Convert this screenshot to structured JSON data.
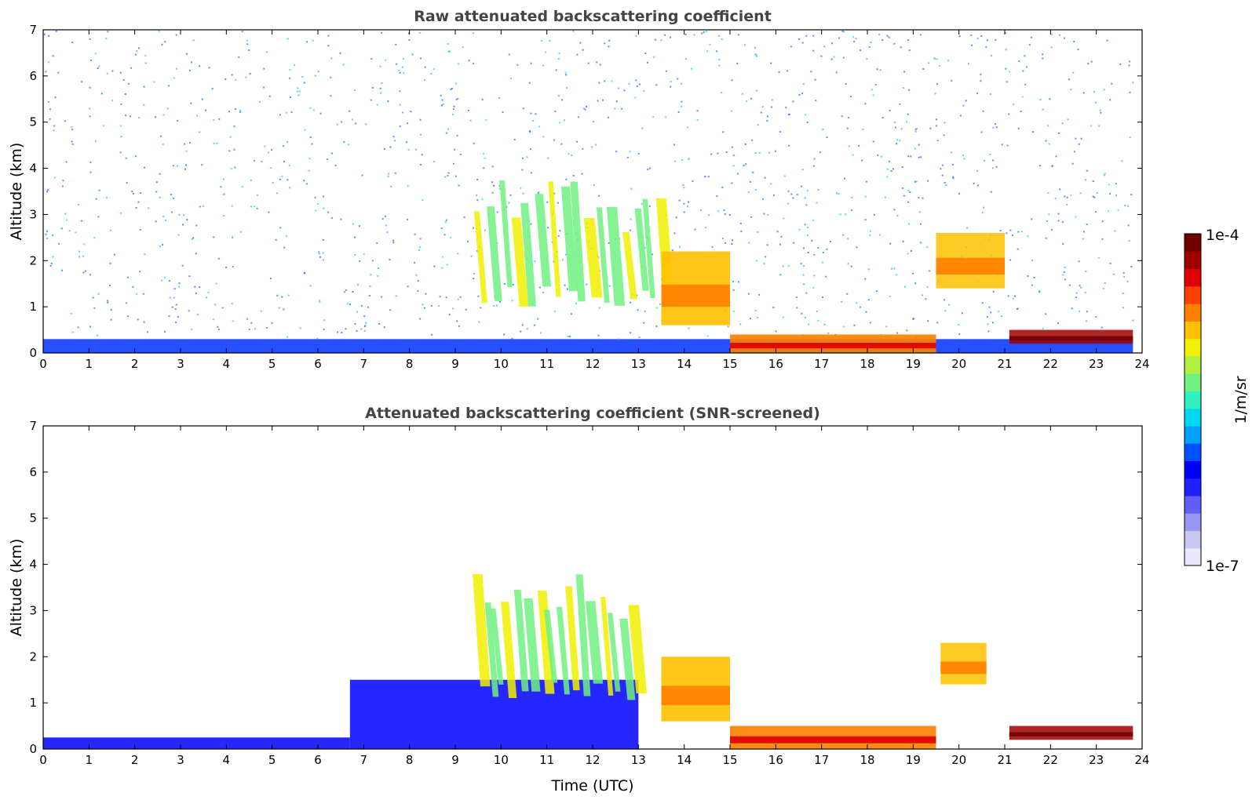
{
  "chart_data": [
    {
      "type": "heatmap",
      "title": "Raw attenuated backscattering coefficient",
      "xlabel": "",
      "ylabel": "Altitude (km)",
      "xlim": [
        0,
        24
      ],
      "ylim": [
        0,
        7
      ],
      "xticks": [
        "0",
        "1",
        "2",
        "3",
        "4",
        "5",
        "6",
        "7",
        "8",
        "9",
        "10",
        "11",
        "12",
        "13",
        "14",
        "15",
        "16",
        "17",
        "18",
        "19",
        "20",
        "21",
        "22",
        "23",
        "24"
      ],
      "yticks": [
        "0",
        "1",
        "2",
        "3",
        "4",
        "5",
        "6",
        "7"
      ],
      "features": [
        {
          "kind": "dense_near_surface_layer",
          "time": [
            0,
            23.8
          ],
          "altitude": [
            0,
            0.3
          ],
          "level": "low-mid"
        },
        {
          "kind": "noise_field",
          "time": [
            0,
            23.8
          ],
          "altitude": [
            0.3,
            7
          ],
          "level": "low"
        },
        {
          "kind": "virga_streaks",
          "time": [
            9.3,
            13.6
          ],
          "altitude": [
            1.0,
            3.8
          ],
          "level": "mid-high"
        },
        {
          "kind": "descending_cloud",
          "time": [
            13.5,
            15.0
          ],
          "altitude": [
            0.6,
            2.2
          ],
          "level": "high"
        },
        {
          "kind": "boundary_layer",
          "time": [
            15.0,
            19.5
          ],
          "altitude": [
            0,
            0.4
          ],
          "level": "very-high"
        },
        {
          "kind": "cloud_band",
          "time": [
            19.5,
            21.0
          ],
          "altitude": [
            1.4,
            2.6
          ],
          "level": "high"
        },
        {
          "kind": "low_cloud",
          "time": [
            21.1,
            23.8
          ],
          "altitude": [
            0.2,
            0.5
          ],
          "level": "max"
        }
      ]
    },
    {
      "type": "heatmap",
      "title": "Attenuated backscattering coefficient (SNR-screened)",
      "xlabel": "Time (UTC)",
      "ylabel": "Altitude (km)",
      "xlim": [
        0,
        24
      ],
      "ylim": [
        0,
        7
      ],
      "xticks": [
        "0",
        "1",
        "2",
        "3",
        "4",
        "5",
        "6",
        "7",
        "8",
        "9",
        "10",
        "11",
        "12",
        "13",
        "14",
        "15",
        "16",
        "17",
        "18",
        "19",
        "20",
        "21",
        "22",
        "23",
        "24"
      ],
      "yticks": [
        "0",
        "1",
        "2",
        "3",
        "4",
        "5",
        "6",
        "7"
      ],
      "features": [
        {
          "kind": "surface_layer",
          "time": [
            0,
            6.7
          ],
          "altitude": [
            0,
            0.25
          ],
          "level": "low"
        },
        {
          "kind": "blue_haze",
          "time": [
            6.7,
            13.0
          ],
          "altitude": [
            0,
            1.5
          ],
          "level": "low"
        },
        {
          "kind": "virga_streaks",
          "time": [
            9.3,
            13.0
          ],
          "altitude": [
            1.0,
            3.8
          ],
          "level": "mid-high"
        },
        {
          "kind": "descending_cloud",
          "time": [
            13.5,
            15.0
          ],
          "altitude": [
            0.6,
            2.0
          ],
          "level": "high"
        },
        {
          "kind": "boundary_layer",
          "time": [
            15.0,
            19.5
          ],
          "altitude": [
            0,
            0.5
          ],
          "level": "very-high"
        },
        {
          "kind": "cloud_band",
          "time": [
            19.6,
            20.6
          ],
          "altitude": [
            1.4,
            2.3
          ],
          "level": "high"
        },
        {
          "kind": "low_cloud",
          "time": [
            21.1,
            23.8
          ],
          "altitude": [
            0.2,
            0.5
          ],
          "level": "max"
        }
      ]
    }
  ],
  "colorbar": {
    "unit_label": "1/m/sr",
    "max_label": "1e-4",
    "min_label": "1e-7",
    "colors": [
      "#e8e8f8",
      "#c8c8f0",
      "#9898f0",
      "#6060f8",
      "#2020ff",
      "#0000ff",
      "#0050ff",
      "#00a0ff",
      "#00d8f0",
      "#30f0c0",
      "#70f080",
      "#b0f040",
      "#f0f000",
      "#ffc000",
      "#ff8000",
      "#ff4000",
      "#e00000",
      "#a00000",
      "#700000"
    ]
  }
}
